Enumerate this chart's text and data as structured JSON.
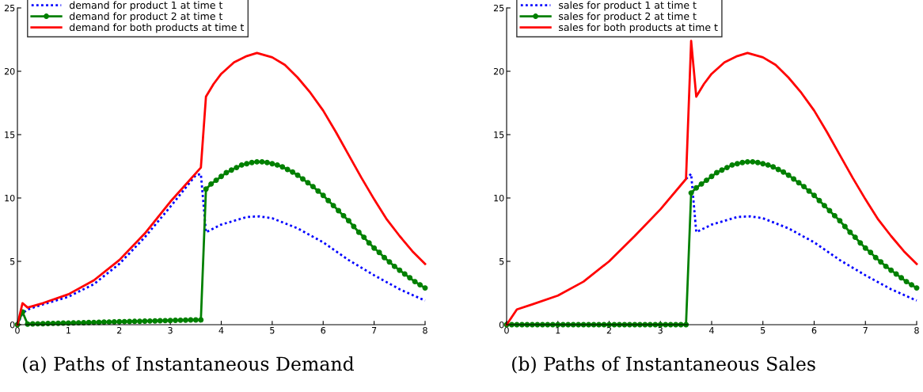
{
  "chart_data": [
    {
      "type": "line",
      "xlim": [
        0,
        8
      ],
      "ylim": [
        0,
        25
      ],
      "xticks": [
        0,
        1,
        2,
        3,
        4,
        5,
        6,
        7,
        8
      ],
      "yticks": [
        0,
        5,
        10,
        15,
        20,
        25
      ],
      "grid": false,
      "legend": "top left",
      "annotations": [
        "(a) Paths of Instantaneous Demand"
      ],
      "series": [
        {
          "name": "demand for product 1 at time t",
          "color": "#0000ff",
          "line_style": "dotted",
          "marker": "none",
          "x": [
            0,
            0.1,
            0.2,
            0.5,
            1,
            1.5,
            2,
            2.5,
            3,
            3.5,
            3.6,
            3.7,
            4,
            4.5,
            4.75,
            5,
            5.5,
            6,
            6.5,
            7,
            7.5,
            8
          ],
          "values": [
            0,
            0.9,
            1.2,
            1.6,
            2.2,
            3.2,
            4.8,
            6.9,
            9.3,
            11.8,
            11.9,
            7.3,
            7.9,
            8.5,
            8.55,
            8.4,
            7.6,
            6.5,
            5.1,
            3.9,
            2.8,
            1.9
          ]
        },
        {
          "name": "demand for product 2 at time t",
          "color": "#008000",
          "line_style": "solid",
          "marker": "circle",
          "x": [
            0,
            0.1,
            0.2,
            0.3,
            0.4,
            0.5,
            0.6,
            0.7,
            0.8,
            0.9,
            1.0,
            1.1,
            1.2,
            1.3,
            1.4,
            1.5,
            1.6,
            1.7,
            1.8,
            1.9,
            2.0,
            2.1,
            2.2,
            2.3,
            2.4,
            2.5,
            2.6,
            2.7,
            2.8,
            2.9,
            3.0,
            3.1,
            3.2,
            3.3,
            3.4,
            3.5,
            3.6,
            3.7,
            3.8,
            3.9,
            4.0,
            4.1,
            4.2,
            4.3,
            4.4,
            4.5,
            4.6,
            4.7,
            4.8,
            4.9,
            5.0,
            5.1,
            5.2,
            5.3,
            5.4,
            5.5,
            5.6,
            5.7,
            5.8,
            5.9,
            6.0,
            6.1,
            6.2,
            6.3,
            6.4,
            6.5,
            6.6,
            6.7,
            6.8,
            6.9,
            7.0,
            7.1,
            7.2,
            7.3,
            7.4,
            7.5,
            7.6,
            7.7,
            7.8,
            7.9,
            8.0
          ],
          "values": [
            0,
            1.0,
            0.05,
            0.06,
            0.07,
            0.08,
            0.09,
            0.1,
            0.11,
            0.12,
            0.13,
            0.14,
            0.15,
            0.16,
            0.17,
            0.18,
            0.19,
            0.2,
            0.21,
            0.22,
            0.23,
            0.24,
            0.25,
            0.26,
            0.27,
            0.28,
            0.29,
            0.3,
            0.31,
            0.32,
            0.33,
            0.34,
            0.35,
            0.36,
            0.37,
            0.38,
            0.38,
            10.7,
            11.1,
            11.4,
            11.7,
            12.0,
            12.2,
            12.4,
            12.6,
            12.7,
            12.8,
            12.85,
            12.85,
            12.8,
            12.7,
            12.6,
            12.45,
            12.25,
            12.05,
            11.8,
            11.5,
            11.2,
            10.9,
            10.55,
            10.2,
            9.8,
            9.4,
            9.0,
            8.6,
            8.2,
            7.75,
            7.3,
            6.9,
            6.45,
            6.05,
            5.7,
            5.3,
            4.95,
            4.6,
            4.3,
            4.0,
            3.7,
            3.4,
            3.15,
            2.9
          ]
        },
        {
          "name": "demand for both products at time t",
          "color": "#ff0000",
          "line_style": "solid",
          "marker": "none",
          "x": [
            0,
            0.1,
            0.2,
            0.5,
            1,
            1.5,
            2,
            2.5,
            3,
            3.6,
            3.7,
            3.85,
            4,
            4.25,
            4.5,
            4.7,
            5,
            5.25,
            5.5,
            5.75,
            6,
            6.25,
            6.5,
            6.75,
            7,
            7.25,
            7.5,
            7.75,
            8
          ],
          "values": [
            0,
            1.7,
            1.35,
            1.7,
            2.4,
            3.5,
            5.1,
            7.2,
            9.7,
            12.4,
            18.0,
            19.0,
            19.8,
            20.7,
            21.2,
            21.45,
            21.1,
            20.5,
            19.5,
            18.3,
            16.9,
            15.2,
            13.4,
            11.6,
            9.9,
            8.3,
            7.0,
            5.8,
            4.8
          ]
        }
      ]
    },
    {
      "type": "line",
      "xlim": [
        0,
        8
      ],
      "ylim": [
        0,
        25
      ],
      "xticks": [
        0,
        1,
        2,
        3,
        4,
        5,
        6,
        7,
        8
      ],
      "yticks": [
        0,
        5,
        10,
        15,
        20,
        25
      ],
      "grid": false,
      "legend": "top left",
      "annotations": [
        "(b) Paths of Instantaneous Sales"
      ],
      "series": [
        {
          "name": "sales for product 1 at time t",
          "color": "#0000ff",
          "line_style": "dotted",
          "marker": "none",
          "x": [
            3.5,
            3.6,
            3.7,
            4,
            4.5,
            4.75,
            5,
            5.5,
            6,
            6.5,
            7,
            7.5,
            8
          ],
          "values": [
            11.5,
            11.9,
            7.3,
            7.9,
            8.5,
            8.55,
            8.4,
            7.6,
            6.5,
            5.1,
            3.9,
            2.8,
            1.9
          ]
        },
        {
          "name": "sales for product 2 at time t",
          "color": "#008000",
          "line_style": "solid",
          "marker": "circle",
          "x": [
            0,
            0.1,
            0.2,
            0.3,
            0.4,
            0.5,
            0.6,
            0.7,
            0.8,
            0.9,
            1.0,
            1.1,
            1.2,
            1.3,
            1.4,
            1.5,
            1.6,
            1.7,
            1.8,
            1.9,
            2.0,
            2.1,
            2.2,
            2.3,
            2.4,
            2.5,
            2.6,
            2.7,
            2.8,
            2.9,
            3.0,
            3.1,
            3.2,
            3.3,
            3.4,
            3.5,
            3.6,
            3.7,
            3.8,
            3.9,
            4.0,
            4.1,
            4.2,
            4.3,
            4.4,
            4.5,
            4.6,
            4.7,
            4.8,
            4.9,
            5.0,
            5.1,
            5.2,
            5.3,
            5.4,
            5.5,
            5.6,
            5.7,
            5.8,
            5.9,
            6.0,
            6.1,
            6.2,
            6.3,
            6.4,
            6.5,
            6.6,
            6.7,
            6.8,
            6.9,
            7.0,
            7.1,
            7.2,
            7.3,
            7.4,
            7.5,
            7.6,
            7.7,
            7.8,
            7.9,
            8.0
          ],
          "values": [
            0,
            0,
            0,
            0,
            0,
            0,
            0,
            0,
            0,
            0,
            0,
            0,
            0,
            0,
            0,
            0,
            0,
            0,
            0,
            0,
            0,
            0,
            0,
            0,
            0,
            0,
            0,
            0,
            0,
            0,
            0,
            0,
            0,
            0,
            0,
            0,
            10.4,
            10.8,
            11.1,
            11.4,
            11.7,
            12.0,
            12.2,
            12.4,
            12.6,
            12.7,
            12.8,
            12.85,
            12.85,
            12.8,
            12.7,
            12.6,
            12.45,
            12.25,
            12.05,
            11.8,
            11.5,
            11.2,
            10.9,
            10.55,
            10.2,
            9.8,
            9.4,
            9.0,
            8.6,
            8.2,
            7.75,
            7.3,
            6.9,
            6.45,
            6.05,
            5.7,
            5.3,
            4.95,
            4.6,
            4.3,
            4.0,
            3.7,
            3.4,
            3.15,
            2.9
          ]
        },
        {
          "name": "sales for both products at time t",
          "color": "#ff0000",
          "line_style": "solid",
          "marker": "none",
          "x": [
            0,
            0.2,
            0.5,
            1,
            1.5,
            2,
            2.5,
            3,
            3.5,
            3.6,
            3.7,
            3.85,
            4,
            4.25,
            4.5,
            4.7,
            5,
            5.25,
            5.5,
            5.75,
            6,
            6.25,
            6.5,
            6.75,
            7,
            7.25,
            7.5,
            7.75,
            8
          ],
          "values": [
            0,
            1.2,
            1.6,
            2.3,
            3.4,
            5.0,
            7.0,
            9.1,
            11.5,
            22.4,
            18.0,
            19.0,
            19.8,
            20.7,
            21.2,
            21.45,
            21.1,
            20.5,
            19.5,
            18.3,
            16.9,
            15.2,
            13.4,
            11.6,
            9.9,
            8.3,
            7.0,
            5.8,
            4.8
          ]
        }
      ]
    }
  ]
}
